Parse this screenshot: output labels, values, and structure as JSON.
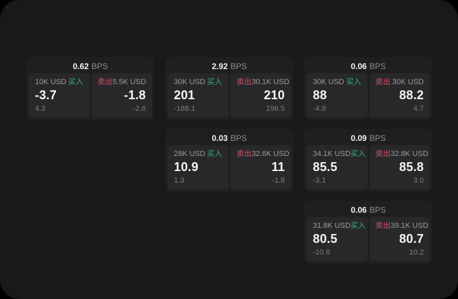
{
  "labels": {
    "bps_unit": "BPS",
    "buy": "买入",
    "sell": "卖出"
  },
  "colors": {
    "page_background": "#19191b",
    "card_background": "#1f1f21",
    "panel_background": "#28282b",
    "buy_accent": "#3cb179",
    "sell_accent": "#cf5164"
  },
  "cards": [
    {
      "bps": "0.62",
      "buy": {
        "amount": "10K USD",
        "price": "-3.7",
        "change": "4.3"
      },
      "sell": {
        "amount": "5.5K USD",
        "price": "-1.8",
        "change": "-2.6"
      }
    },
    {
      "bps": "2.92",
      "buy": {
        "amount": "30K USD",
        "price": "201",
        "change": "-188.1"
      },
      "sell": {
        "amount": "30.1K USD",
        "price": "210",
        "change": "196.5"
      }
    },
    {
      "bps": "0.06",
      "buy": {
        "amount": "30K USD",
        "price": "88",
        "change": "-4.9"
      },
      "sell": {
        "amount": "30K USD",
        "price": "88.2",
        "change": "4.7"
      }
    },
    {
      "bps": "0.03",
      "buy": {
        "amount": "28K USD",
        "price": "10.9",
        "change": "1.3"
      },
      "sell": {
        "amount": "32.6K USD",
        "price": "11",
        "change": "-1.8"
      }
    },
    {
      "bps": "0.09",
      "buy": {
        "amount": "34.1K USD",
        "price": "85.5",
        "change": "-3.1"
      },
      "sell": {
        "amount": "32.8K USD",
        "price": "85.8",
        "change": "3.0"
      }
    },
    {
      "bps": "0.06",
      "buy": {
        "amount": "31.8K USD",
        "price": "80.5",
        "change": "-10.8"
      },
      "sell": {
        "amount": "39.1K USD",
        "price": "80.7",
        "change": "10.2"
      }
    }
  ]
}
